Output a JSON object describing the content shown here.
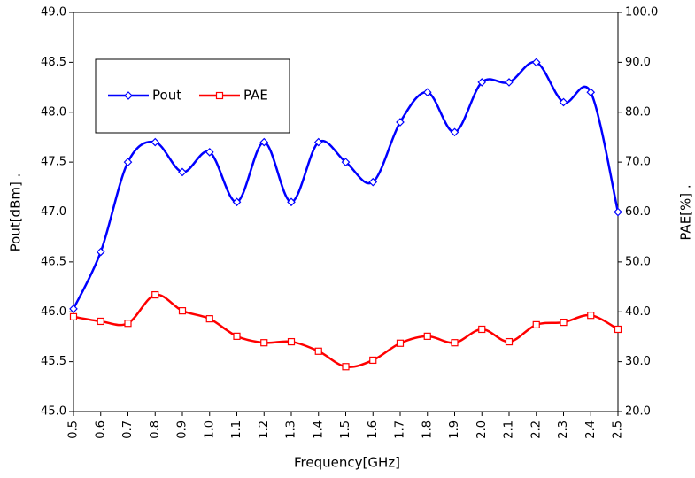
{
  "chart_data": {
    "type": "line",
    "xlabel": "Frequency[GHz]",
    "ylabel": "Pout[dBm] .",
    "y2label": "PAE[%] .",
    "x": [
      0.5,
      0.6,
      0.7,
      0.8,
      0.9,
      1.0,
      1.1,
      1.2,
      1.3,
      1.4,
      1.5,
      1.6,
      1.7,
      1.8,
      1.9,
      2.0,
      2.1,
      2.2,
      2.3,
      2.4,
      2.5
    ],
    "series": [
      {
        "name": "Pout",
        "color": "#0000ff",
        "marker": "diamond",
        "axis": "y",
        "values": [
          46.03,
          46.6,
          47.5,
          47.7,
          47.4,
          47.6,
          47.1,
          47.7,
          47.1,
          47.7,
          47.5,
          47.3,
          47.9,
          48.2,
          47.8,
          48.3,
          48.3,
          48.5,
          48.1,
          48.2,
          47.0
        ]
      },
      {
        "name": "PAE",
        "color": "#ff0000",
        "marker": "square",
        "axis": "y2",
        "values": [
          39.0,
          38.1,
          37.7,
          43.4,
          40.2,
          38.6,
          35.1,
          33.8,
          34.0,
          32.1,
          29.0,
          30.3,
          33.7,
          35.1,
          33.8,
          36.5,
          34.0,
          37.4,
          37.9,
          39.3,
          36.5
        ]
      }
    ],
    "xlim": [
      0.5,
      2.5
    ],
    "xticks": [
      0.5,
      0.6,
      0.7,
      0.8,
      0.9,
      {
        "value": 1,
        "label": "1.0"
      },
      1.1,
      1.2,
      1.3,
      1.4,
      1.5,
      1.6,
      1.7,
      1.8,
      1.9,
      {
        "value": 2,
        "label": "2.0"
      },
      2.1,
      2.2,
      2.3,
      2.4,
      2.5
    ],
    "ylim": [
      45,
      49
    ],
    "yticks": [
      {
        "value": 45,
        "label": "45.0"
      },
      45.5,
      {
        "value": 46,
        "label": "46.0"
      },
      46.5,
      {
        "value": 47,
        "label": "47.0"
      },
      47.5,
      {
        "value": 48,
        "label": "48.0"
      },
      48.5,
      {
        "value": 49,
        "label": "49.0"
      }
    ],
    "y2lim": [
      20,
      100
    ],
    "y2ticks": [
      {
        "value": 20,
        "label": "20.0"
      },
      {
        "value": 30,
        "label": "30.0"
      },
      {
        "value": 40,
        "label": "40.0"
      },
      {
        "value": 50,
        "label": "50.0"
      },
      {
        "value": 60,
        "label": "60.0"
      },
      {
        "value": 70,
        "label": "70.0"
      },
      {
        "value": 80,
        "label": "80.0"
      },
      {
        "value": 90,
        "label": "90.0"
      },
      {
        "value": 100,
        "label": "100.0"
      }
    ],
    "grid": false
  }
}
